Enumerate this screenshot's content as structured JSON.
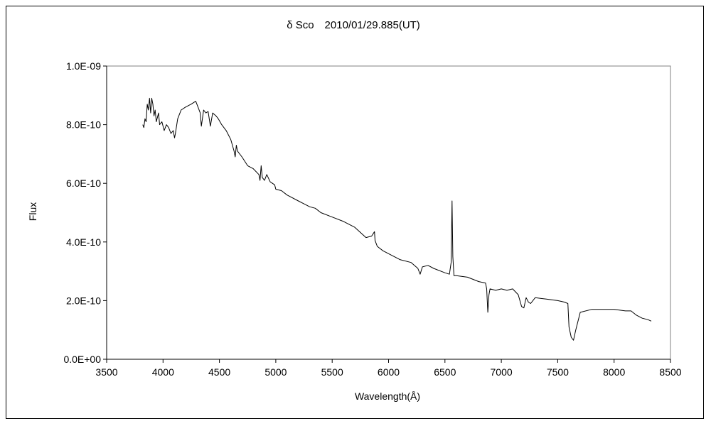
{
  "chart_data": {
    "type": "line",
    "title": "δ Sco　2010/01/29.885(UT)",
    "xlabel": "Wavelength(Å)",
    "ylabel": "Flux",
    "xlim": [
      3500,
      8500
    ],
    "ylim": [
      0,
      1e-09
    ],
    "x_ticks": [
      3500,
      4000,
      4500,
      5000,
      5500,
      6000,
      6500,
      7000,
      7500,
      8000,
      8500
    ],
    "x_tick_labels": [
      "3500",
      "4000",
      "4500",
      "5000",
      "5500",
      "6000",
      "6500",
      "7000",
      "7500",
      "8000",
      "8500"
    ],
    "y_ticks": [
      0,
      2e-10,
      4e-10,
      6e-10,
      8e-10,
      1e-09
    ],
    "y_tick_labels": [
      "0.0E+00",
      "2.0E-10",
      "4.0E-10",
      "6.0E-10",
      "8.0E-10",
      "1.0E-09"
    ],
    "grid": false,
    "legend": "none",
    "line_color": "#000000",
    "series": [
      {
        "x": [
          3820,
          3830,
          3840,
          3850,
          3860,
          3870,
          3880,
          3890,
          3900,
          3910,
          3920,
          3930,
          3940,
          3960,
          3970,
          3990,
          4010,
          4030,
          4050,
          4070,
          4090,
          4102,
          4110,
          4130,
          4160,
          4200,
          4250,
          4290,
          4310,
          4330,
          4340,
          4360,
          4380,
          4400,
          4420,
          4440,
          4470,
          4490,
          4520,
          4560,
          4600,
          4630,
          4640,
          4650,
          4660,
          4700,
          4750,
          4800,
          4850,
          4860,
          4870,
          4880,
          4900,
          4920,
          4950,
          4990,
          5000,
          5050,
          5100,
          5200,
          5250,
          5300,
          5350,
          5400,
          5500,
          5600,
          5700,
          5800,
          5850,
          5875,
          5880,
          5890,
          5900,
          5950,
          6000,
          6100,
          6200,
          6260,
          6280,
          6300,
          6350,
          6400,
          6500,
          6540,
          6555,
          6563,
          6570,
          6580,
          6600,
          6700,
          6800,
          6860,
          6870,
          6880,
          6890,
          6900,
          6950,
          7000,
          7050,
          7100,
          7150,
          7180,
          7200,
          7220,
          7240,
          7260,
          7300,
          7400,
          7500,
          7560,
          7590,
          7600,
          7620,
          7640,
          7660,
          7700,
          7800,
          7900,
          8000,
          8100,
          8150,
          8200,
          8250,
          8300,
          8330
        ],
        "y": [
          8e-10,
          7.9e-10,
          8.2e-10,
          8.1e-10,
          8.7e-10,
          8.5e-10,
          8.9e-10,
          8.4e-10,
          8.9e-10,
          8.7e-10,
          8.3e-10,
          8.5e-10,
          8.1e-10,
          8.4e-10,
          8e-10,
          8.1e-10,
          7.8e-10,
          8e-10,
          7.9e-10,
          7.7e-10,
          7.8e-10,
          7.55e-10,
          7.7e-10,
          8.2e-10,
          8.5e-10,
          8.6e-10,
          8.7e-10,
          8.8e-10,
          8.6e-10,
          8.4e-10,
          7.95e-10,
          8.5e-10,
          8.4e-10,
          8.45e-10,
          7.95e-10,
          8.4e-10,
          8.3e-10,
          8.2e-10,
          8e-10,
          7.8e-10,
          7.5e-10,
          7.1e-10,
          6.9e-10,
          7.3e-10,
          7.1e-10,
          6.9e-10,
          6.6e-10,
          6.5e-10,
          6.3e-10,
          6.1e-10,
          6.6e-10,
          6.2e-10,
          6.1e-10,
          6.3e-10,
          6.05e-10,
          5.95e-10,
          5.8e-10,
          5.75e-10,
          5.6e-10,
          5.4e-10,
          5.3e-10,
          5.2e-10,
          5.15e-10,
          5e-10,
          4.85e-10,
          4.7e-10,
          4.5e-10,
          4.15e-10,
          4.2e-10,
          4.35e-10,
          4.05e-10,
          3.95e-10,
          3.85e-10,
          3.7e-10,
          3.6e-10,
          3.4e-10,
          3.3e-10,
          3.1e-10,
          2.9e-10,
          3.15e-10,
          3.2e-10,
          3.1e-10,
          2.95e-10,
          2.9e-10,
          3.3e-10,
          5.4e-10,
          3.5e-10,
          2.85e-10,
          2.85e-10,
          2.8e-10,
          2.65e-10,
          2.6e-10,
          2.4e-10,
          1.6e-10,
          2.2e-10,
          2.4e-10,
          2.35e-10,
          2.4e-10,
          2.35e-10,
          2.4e-10,
          2.2e-10,
          1.8e-10,
          1.75e-10,
          2.1e-10,
          1.95e-10,
          1.9e-10,
          2.1e-10,
          2.05e-10,
          2e-10,
          1.95e-10,
          1.9e-10,
          1.1e-10,
          7.5e-11,
          6.5e-11,
          1e-10,
          1.6e-10,
          1.7e-10,
          1.7e-10,
          1.7e-10,
          1.65e-10,
          1.65e-10,
          1.5e-10,
          1.4e-10,
          1.35e-10,
          1.3e-10
        ]
      }
    ]
  }
}
